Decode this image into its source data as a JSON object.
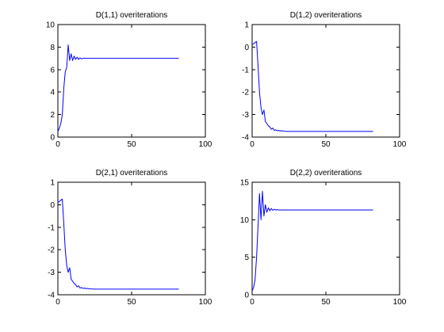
{
  "figure": {
    "background": "#ffffff",
    "line_color": "#0000ff"
  },
  "chart_data": [
    {
      "type": "line",
      "title": "D(1,1) overiterations",
      "xlim": [
        0,
        100
      ],
      "ylim": [
        0,
        10
      ],
      "xticks": [
        0,
        50,
        100
      ],
      "yticks": [
        0,
        2,
        4,
        6,
        8,
        10
      ],
      "grid": false,
      "series": [
        {
          "color": "#0000ff",
          "x": [
            0,
            1,
            2,
            3,
            4,
            5,
            6,
            7,
            8,
            9,
            10,
            11,
            12,
            13,
            14,
            15,
            16,
            17,
            18,
            20,
            25,
            30,
            40,
            50,
            60,
            70,
            82
          ],
          "y": [
            0.5,
            0.8,
            1.2,
            2.0,
            4.3,
            5.8,
            6.2,
            8.2,
            6.8,
            7.4,
            6.8,
            7.2,
            6.9,
            7.1,
            6.9,
            7.05,
            6.95,
            7.0,
            7.0,
            7.0,
            7.0,
            7.0,
            7.0,
            7.0,
            7.0,
            7.0,
            7.0
          ]
        }
      ]
    },
    {
      "type": "line",
      "title": "D(1,2) overiterations",
      "xlim": [
        0,
        100
      ],
      "ylim": [
        -4,
        1
      ],
      "xticks": [
        0,
        50,
        100
      ],
      "yticks": [
        -4,
        -3,
        -2,
        -1,
        0,
        1
      ],
      "grid": false,
      "series": [
        {
          "color": "#0000ff",
          "x": [
            0,
            1,
            2,
            3,
            4,
            5,
            6,
            7,
            8,
            9,
            10,
            11,
            12,
            13,
            14,
            15,
            16,
            17,
            18,
            19,
            20,
            22,
            25,
            30,
            40,
            50,
            60,
            70,
            82
          ],
          "y": [
            0.1,
            0.15,
            0.2,
            0.25,
            -0.8,
            -2.0,
            -2.7,
            -3.0,
            -2.8,
            -3.3,
            -3.4,
            -3.5,
            -3.55,
            -3.65,
            -3.6,
            -3.7,
            -3.68,
            -3.72,
            -3.7,
            -3.73,
            -3.72,
            -3.74,
            -3.75,
            -3.75,
            -3.75,
            -3.75,
            -3.75,
            -3.75,
            -3.75
          ]
        }
      ]
    },
    {
      "type": "line",
      "title": "D(2,1) overiterations",
      "xlim": [
        0,
        100
      ],
      "ylim": [
        -4,
        1
      ],
      "xticks": [
        0,
        50,
        100
      ],
      "yticks": [
        -4,
        -3,
        -2,
        -1,
        0,
        1
      ],
      "grid": false,
      "series": [
        {
          "color": "#0000ff",
          "x": [
            0,
            1,
            2,
            3,
            4,
            5,
            6,
            7,
            8,
            9,
            10,
            11,
            12,
            13,
            14,
            15,
            16,
            17,
            18,
            19,
            20,
            22,
            25,
            30,
            40,
            50,
            60,
            70,
            82
          ],
          "y": [
            0.1,
            0.15,
            0.2,
            0.25,
            -0.8,
            -2.0,
            -2.7,
            -3.0,
            -2.8,
            -3.3,
            -3.4,
            -3.5,
            -3.55,
            -3.65,
            -3.6,
            -3.7,
            -3.68,
            -3.72,
            -3.7,
            -3.73,
            -3.72,
            -3.74,
            -3.75,
            -3.75,
            -3.75,
            -3.75,
            -3.75,
            -3.75,
            -3.75
          ]
        }
      ]
    },
    {
      "type": "line",
      "title": "D(2,2) overiterations",
      "xlim": [
        0,
        100
      ],
      "ylim": [
        0,
        15
      ],
      "xticks": [
        0,
        50,
        100
      ],
      "yticks": [
        0,
        5,
        10,
        15
      ],
      "grid": false,
      "series": [
        {
          "color": "#0000ff",
          "x": [
            0,
            1,
            2,
            3,
            4,
            5,
            6,
            7,
            8,
            9,
            10,
            11,
            12,
            13,
            14,
            15,
            16,
            17,
            18,
            20,
            25,
            30,
            40,
            50,
            60,
            70,
            82
          ],
          "y": [
            0.5,
            1.0,
            2.0,
            5.0,
            9.0,
            13.5,
            10.0,
            13.8,
            10.5,
            12.0,
            11.0,
            11.6,
            11.2,
            11.5,
            11.25,
            11.4,
            11.3,
            11.35,
            11.3,
            11.3,
            11.3,
            11.3,
            11.3,
            11.3,
            11.3,
            11.3,
            11.3
          ]
        }
      ]
    }
  ]
}
